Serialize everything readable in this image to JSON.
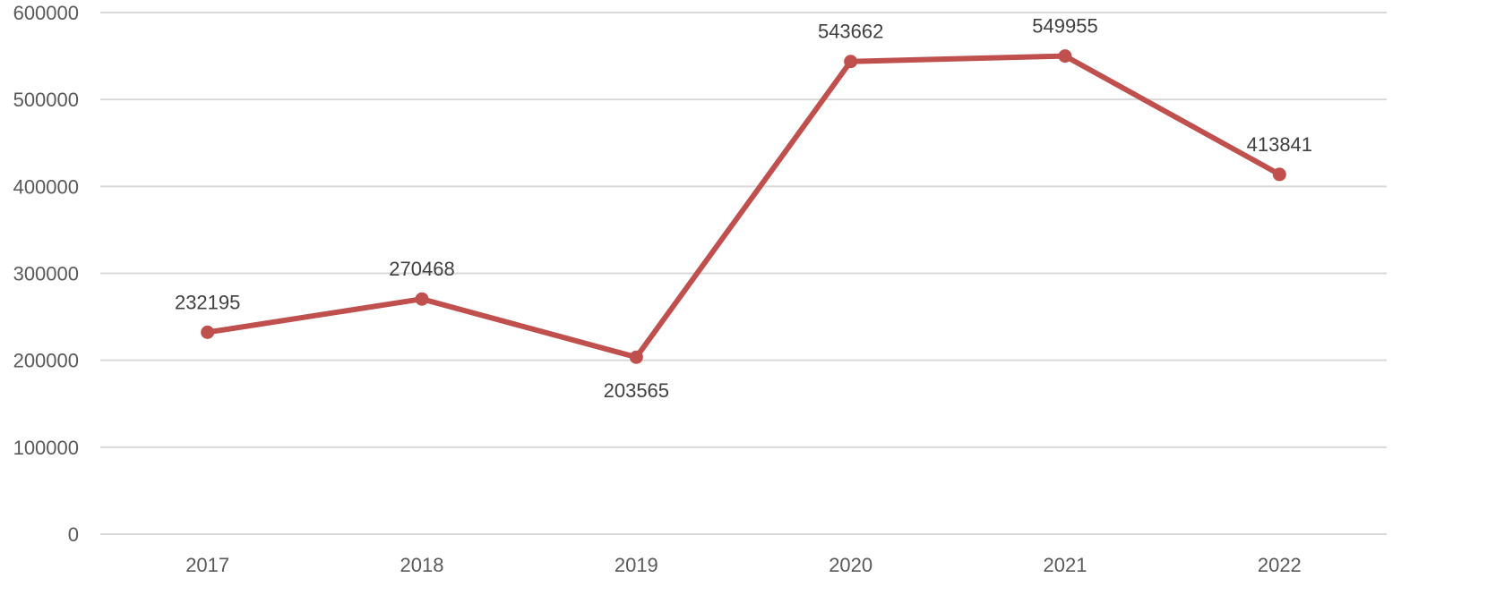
{
  "chart_data": {
    "type": "line",
    "title": "",
    "xlabel": "",
    "ylabel": "",
    "categories": [
      "2017",
      "2018",
      "2019",
      "2020",
      "2021",
      "2022"
    ],
    "series": [
      {
        "values": [
          232195,
          270468,
          203565,
          543662,
          549955,
          413841
        ],
        "color": "#c0504d",
        "data_labels": [
          "232195",
          "270468",
          "203565",
          "543662",
          "549955",
          "413841"
        ]
      }
    ],
    "ylim": [
      0,
      600000
    ],
    "y_ticks": [
      "0",
      "100000",
      "200000",
      "300000",
      "400000",
      "500000",
      "600000"
    ],
    "grid": true,
    "legend": "none"
  }
}
